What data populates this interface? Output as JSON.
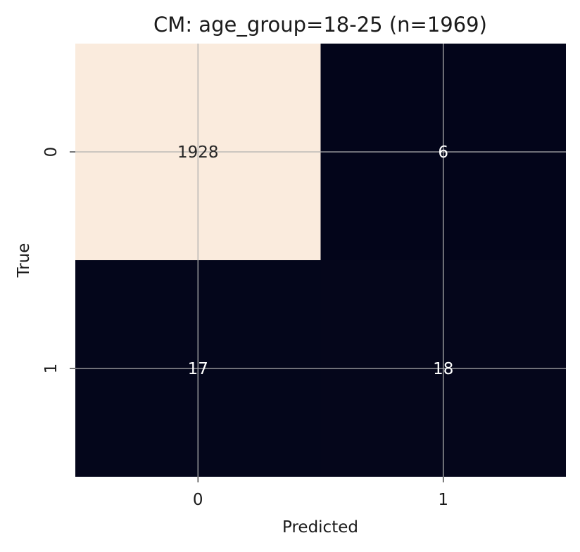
{
  "chart_data": {
    "type": "heatmap",
    "title": "CM: age_group=18-25 (n=1969)",
    "xlabel": "Predicted",
    "ylabel": "True",
    "x_categories": [
      "0",
      "1"
    ],
    "y_categories": [
      "0",
      "1"
    ],
    "values": [
      [
        1928,
        6
      ],
      [
        17,
        18
      ]
    ],
    "grid": true,
    "colorbar": false,
    "colors": {
      "low": "#03051a",
      "high": "#faebdd",
      "text_on_dark": "#ffffff",
      "text_on_light": "#262626",
      "grid": "#b0b0b0"
    }
  }
}
